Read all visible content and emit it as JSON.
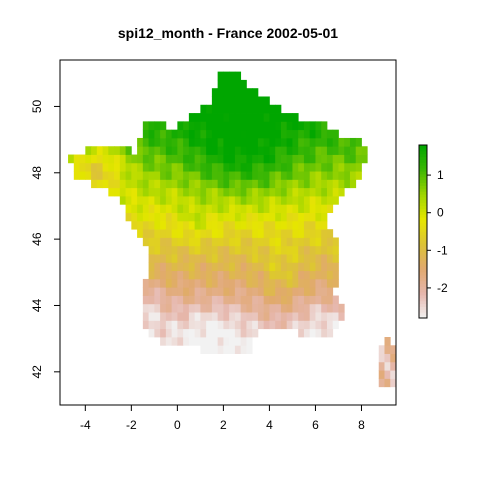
{
  "title": "spi12_month - France 2002-05-01",
  "x_axis": {
    "ticks": [
      -4,
      -2,
      0,
      2,
      4,
      6,
      8
    ],
    "labels": [
      "-4",
      "-2",
      "0",
      "2",
      "4",
      "6",
      "8"
    ],
    "range": [
      -5.1,
      9.5
    ]
  },
  "y_axis": {
    "ticks": [
      42,
      44,
      46,
      48,
      50
    ],
    "labels": [
      "42",
      "44",
      "46",
      "48",
      "50"
    ],
    "range": [
      41.0,
      51.4
    ]
  },
  "legend": {
    "ticks": [
      1,
      0,
      -1,
      -2
    ],
    "labels": [
      "1",
      "0",
      "-1",
      "-2"
    ],
    "range": [
      -2.8,
      1.8
    ],
    "colors": [
      "#f2f2f2",
      "#e6b7ad",
      "#e1a96f",
      "#dcc337",
      "#e6e600",
      "#9fd500",
      "#3db705",
      "#00a600"
    ]
  },
  "map": {
    "variable": "spi12_month",
    "region": "France",
    "date": "2002-05-01",
    "cell_size_deg": 0.25
  }
}
